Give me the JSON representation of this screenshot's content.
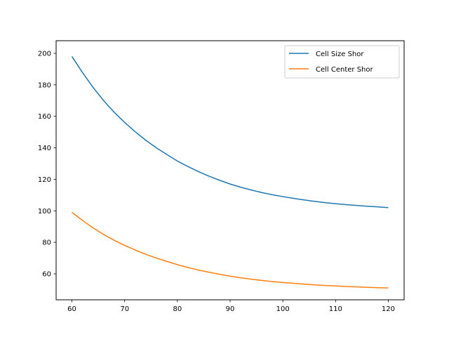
{
  "chart_data": {
    "type": "line",
    "title": "",
    "xlabel": "",
    "ylabel": "",
    "xlim": [
      57,
      123
    ],
    "ylim": [
      43.5,
      208
    ],
    "xticks": [
      60,
      70,
      80,
      90,
      100,
      110,
      120
    ],
    "yticks": [
      60,
      80,
      100,
      120,
      140,
      160,
      180,
      200
    ],
    "grid": false,
    "legend_position": "top-right",
    "x": [
      60,
      62,
      64,
      66,
      68,
      70,
      72,
      74,
      76,
      78,
      80,
      82,
      84,
      86,
      88,
      90,
      92,
      94,
      96,
      98,
      100,
      102,
      104,
      106,
      108,
      110,
      112,
      114,
      116,
      118,
      120
    ],
    "series": [
      {
        "name": "Cell Size Shor",
        "color": "#1f77b4",
        "values": [
          198.0,
          187.8,
          178.4,
          170.0,
          162.6,
          156.1,
          150.2,
          144.8,
          140.0,
          135.8,
          131.6,
          128.1,
          124.9,
          122.0,
          119.4,
          117.0,
          115.0,
          113.2,
          111.6,
          110.2,
          109.0,
          107.9,
          106.9,
          106.0,
          105.2,
          104.5,
          103.9,
          103.4,
          102.9,
          102.5,
          102.0
        ]
      },
      {
        "name": "Cell Center Shor",
        "color": "#ff7f0e",
        "values": [
          99.0,
          93.9,
          89.2,
          85.0,
          81.3,
          78.0,
          75.1,
          72.4,
          70.0,
          67.9,
          65.8,
          64.0,
          62.4,
          61.0,
          59.7,
          58.5,
          57.5,
          56.6,
          55.8,
          55.1,
          54.5,
          54.0,
          53.5,
          53.0,
          52.6,
          52.3,
          51.9,
          51.7,
          51.4,
          51.2,
          51.0
        ]
      }
    ]
  }
}
